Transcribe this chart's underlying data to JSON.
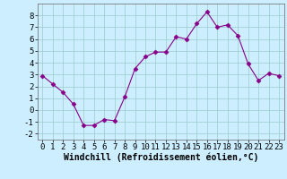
{
  "x": [
    0,
    1,
    2,
    3,
    4,
    5,
    6,
    7,
    8,
    9,
    10,
    11,
    12,
    13,
    14,
    15,
    16,
    17,
    18,
    19,
    20,
    21,
    22,
    23
  ],
  "y": [
    2.9,
    2.2,
    1.5,
    0.5,
    -1.3,
    -1.3,
    -0.8,
    -0.9,
    1.1,
    3.5,
    4.5,
    4.9,
    4.9,
    6.2,
    6.0,
    7.3,
    8.3,
    7.0,
    7.2,
    6.3,
    3.9,
    2.5,
    3.1,
    2.9
  ],
  "line_color": "#880088",
  "marker": "D",
  "marker_size": 2.5,
  "bg_color": "#cceeff",
  "grid_color": "#99cccc",
  "xlabel": "Windchill (Refroidissement éolien,°C)",
  "xlabel_fontsize": 7,
  "tick_fontsize": 6.5,
  "ylim": [
    -2.5,
    9.0
  ],
  "xlim": [
    -0.5,
    23.5
  ],
  "yticks": [
    -2,
    -1,
    0,
    1,
    2,
    3,
    4,
    5,
    6,
    7,
    8
  ],
  "xticks": [
    0,
    1,
    2,
    3,
    4,
    5,
    6,
    7,
    8,
    9,
    10,
    11,
    12,
    13,
    14,
    15,
    16,
    17,
    18,
    19,
    20,
    21,
    22,
    23
  ]
}
